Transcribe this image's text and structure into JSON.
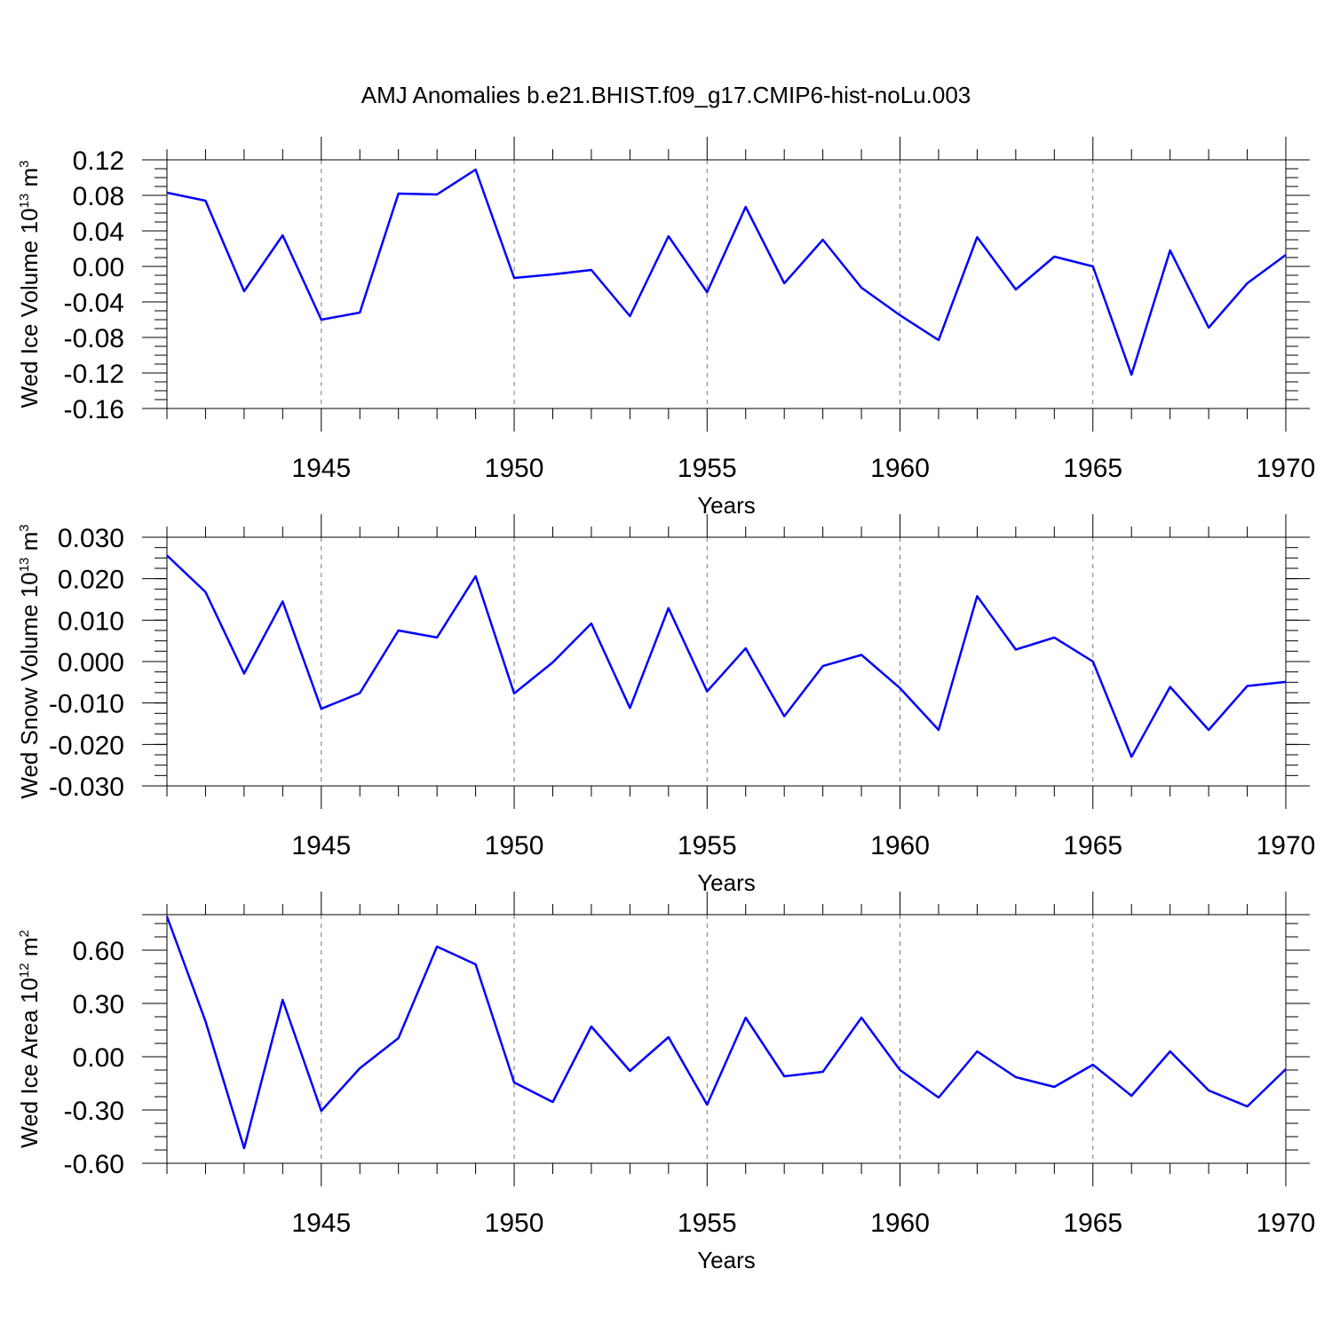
{
  "title": "AMJ Anomalies b.e21.BHIST.f09_g17.CMIP6-hist-noLu.003",
  "line_color": "#0000ff",
  "chart_data": [
    {
      "type": "line",
      "ylabel_main": "Wed Ice Volume 10",
      "ylabel_exp": "13",
      "ylabel_unit": " m",
      "ylabel_unit_exp": "3",
      "xlabel": "Years",
      "xlim": [
        1941,
        1970
      ],
      "ylim": [
        -0.16,
        0.12
      ],
      "yticks": [
        -0.16,
        -0.12,
        -0.08,
        -0.04,
        0.0,
        0.04,
        0.08,
        0.12
      ],
      "ytick_labels": [
        "-0.16",
        "-0.12",
        "-0.08",
        "-0.04",
        "0.00",
        "0.04",
        "0.08",
        "0.12"
      ],
      "xticks": [
        1945,
        1950,
        1955,
        1960,
        1965,
        1970
      ],
      "xtick_labels": [
        "1945",
        "1950",
        "1955",
        "1960",
        "1965",
        "1970"
      ],
      "grid": "dashed vertical at major x ticks",
      "x": [
        1941,
        1942,
        1943,
        1944,
        1945,
        1946,
        1947,
        1948,
        1949,
        1950,
        1951,
        1952,
        1953,
        1954,
        1955,
        1956,
        1957,
        1958,
        1959,
        1960,
        1961,
        1962,
        1963,
        1964,
        1965,
        1966,
        1967,
        1968,
        1969,
        1970
      ],
      "values": [
        0.083,
        0.074,
        -0.028,
        0.035,
        -0.06,
        -0.052,
        0.082,
        0.081,
        0.109,
        -0.013,
        -0.009,
        -0.004,
        -0.056,
        0.034,
        -0.029,
        0.067,
        -0.019,
        0.03,
        -0.024,
        -0.055,
        -0.083,
        0.033,
        -0.026,
        0.011,
        0.0,
        -0.122,
        0.018,
        -0.069,
        -0.019,
        0.013
      ]
    },
    {
      "type": "line",
      "ylabel_main": "Wed Snow Volume 10",
      "ylabel_exp": "13",
      "ylabel_unit": " m",
      "ylabel_unit_exp": "3",
      "xlabel": "Years",
      "xlim": [
        1941,
        1970
      ],
      "ylim": [
        -0.03,
        0.03
      ],
      "yticks": [
        -0.03,
        -0.02,
        -0.01,
        0.0,
        0.01,
        0.02,
        0.03
      ],
      "ytick_labels": [
        "-0.030",
        "-0.020",
        "-0.010",
        "0.000",
        "0.010",
        "0.020",
        "0.030"
      ],
      "xticks": [
        1945,
        1950,
        1955,
        1960,
        1965,
        1970
      ],
      "xtick_labels": [
        "1945",
        "1950",
        "1955",
        "1960",
        "1965",
        "1970"
      ],
      "grid": "dashed vertical at major x ticks",
      "x": [
        1941,
        1942,
        1943,
        1944,
        1945,
        1946,
        1947,
        1948,
        1949,
        1950,
        1951,
        1952,
        1953,
        1954,
        1955,
        1956,
        1957,
        1958,
        1959,
        1960,
        1961,
        1962,
        1963,
        1964,
        1965,
        1966,
        1967,
        1968,
        1969,
        1970
      ],
      "values": [
        0.0256,
        0.0168,
        -0.0029,
        0.0145,
        -0.0114,
        -0.0076,
        0.0075,
        0.0058,
        0.0206,
        -0.0077,
        -0.0002,
        0.0092,
        -0.0112,
        0.0129,
        -0.0072,
        0.0032,
        -0.0132,
        -0.0011,
        0.0016,
        -0.0064,
        -0.0165,
        0.0158,
        0.0029,
        0.0058,
        0.0,
        -0.023,
        -0.0061,
        -0.0165,
        -0.0059,
        -0.0049
      ]
    },
    {
      "type": "line",
      "ylabel_main": "Wed Ice Area 10",
      "ylabel_exp": "12",
      "ylabel_unit": " m",
      "ylabel_unit_exp": "2",
      "xlabel": "Years",
      "xlim": [
        1941,
        1970
      ],
      "ylim": [
        -0.6,
        0.8
      ],
      "yticks": [
        -0.6,
        -0.3,
        0.0,
        0.3,
        0.6
      ],
      "ytick_labels": [
        "-0.60",
        "-0.30",
        "0.00",
        "0.30",
        "0.60"
      ],
      "xticks": [
        1945,
        1950,
        1955,
        1960,
        1965,
        1970
      ],
      "xtick_labels": [
        "1945",
        "1950",
        "1955",
        "1960",
        "1965",
        "1970"
      ],
      "grid": "dashed vertical at major x ticks",
      "x": [
        1941,
        1942,
        1943,
        1944,
        1945,
        1946,
        1947,
        1948,
        1949,
        1950,
        1951,
        1952,
        1953,
        1954,
        1955,
        1956,
        1957,
        1958,
        1959,
        1960,
        1961,
        1962,
        1963,
        1964,
        1965,
        1966,
        1967,
        1968,
        1969,
        1970
      ],
      "values": [
        0.79,
        0.2,
        -0.515,
        0.32,
        -0.305,
        -0.065,
        0.105,
        0.62,
        0.52,
        -0.145,
        -0.255,
        0.17,
        -0.08,
        0.11,
        -0.27,
        0.22,
        -0.11,
        -0.085,
        0.22,
        -0.075,
        -0.23,
        0.03,
        -0.115,
        -0.17,
        -0.045,
        -0.22,
        0.03,
        -0.19,
        -0.28,
        -0.07
      ]
    }
  ]
}
